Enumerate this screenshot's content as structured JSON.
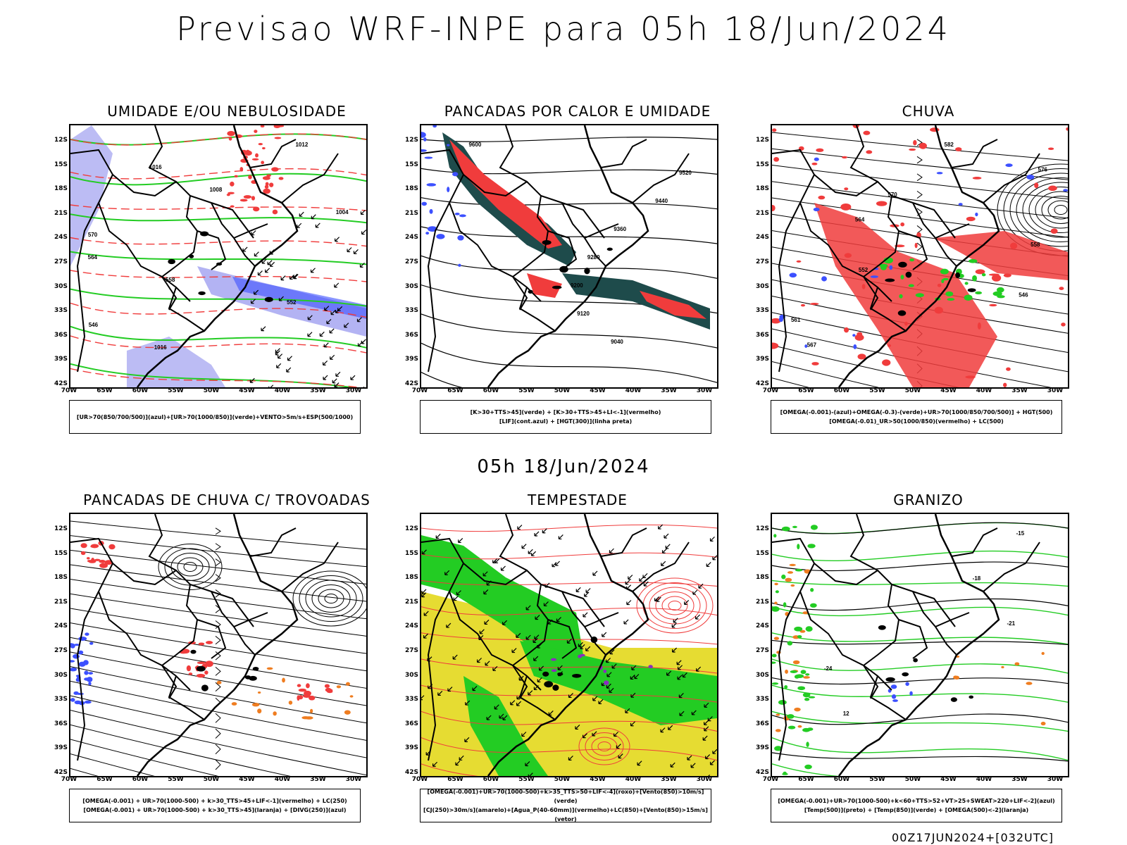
{
  "header": {
    "title": "Previsao WRF-INPE  para 05h 18/Jun/2024",
    "subtitle": "05h 18/Jun/2024",
    "footer": "00Z17JUN2024+[032UTC]"
  },
  "axes": {
    "lat_labels": [
      "12S",
      "15S",
      "18S",
      "21S",
      "24S",
      "27S",
      "30S",
      "33S",
      "36S",
      "39S",
      "42S"
    ],
    "lon_labels": [
      "70W",
      "65W",
      "60W",
      "55W",
      "50W",
      "45W",
      "40W",
      "35W",
      "30W"
    ]
  },
  "panels": [
    {
      "title": "UMIDADE E/OU NEBULOSIDADE",
      "legend": [
        "[UR>70(850/700/500)](azul)+[UR>70(1000/850)](verde)+VENTO>5m/s+ESP(500/1000)"
      ]
    },
    {
      "title": "PANCADAS POR CALOR E UMIDADE",
      "legend": [
        "[K>30+TTS>45](verde) + [K>30+TTS>45+LI<-1](vermelho)",
        "[LIF](cont.azul) + [HGT(300)](linha preta)"
      ]
    },
    {
      "title": "CHUVA",
      "legend": [
        "[OMEGA(-0.001)-(azul)+OMEGA(-0.3)-(verde)+UR>70(1000/850/700/500)] + HGT(500)",
        "[OMEGA(-0.01)_UR>50(1000/850)(vermelho) + LC(500)"
      ]
    },
    {
      "title": "PANCADAS DE CHUVA C/ TROVOADAS",
      "legend": [
        "[OMEGA(-0.001) + UR>70(1000-500) + k>30_TTS>45+LIF<-1](vermelho) + LC(250)",
        "[OMEGA(-0.001) + UR>70(1000-500) + k>30_TTS>45](laranja) + [DIVG(250)](azul)"
      ]
    },
    {
      "title": "TEMPESTADE",
      "legend": [
        "[OMEGA(-0.001)+UR>70(1000-500)+k>35_TTS>50+LIF<-4](roxo)+[Vento(850)>10m/s](verde)",
        "[CJ(250)>30m/s](amarelo)+[Agua_P(40-60mm)](vermelho)+LC(850)+[Vento(850)>15m/s](vetor)"
      ]
    },
    {
      "title": "GRANIZO",
      "legend": [
        "[OMEGA(-0.001)+UR>70(1000-500)+k<60+TTS>52+VT>25+SWEAT>220+LIF<-2](azul)",
        "[Temp(500)](preto) + [Temp(850)](verde) + [OMEGA(500)<-2](laranja)"
      ]
    }
  ],
  "contour_labels": {
    "p1": [
      "1012",
      "1016",
      "1008",
      "1004",
      "570",
      "564",
      "558",
      "552",
      "546",
      "1016"
    ],
    "p2": [
      "9600",
      "9520",
      "9440",
      "9360",
      "9280",
      "9200",
      "9120",
      "9040"
    ],
    "p3": [
      "582",
      "576",
      "570",
      "564",
      "558",
      "552",
      "546",
      "561",
      "567"
    ],
    "p6": [
      "-15",
      "-18",
      "-21",
      "-24",
      "12"
    ]
  },
  "colors": {
    "red": "#f03c3c",
    "green": "#23cc23",
    "blue": "#3c50ff",
    "lavender": "#a0a0f0",
    "dark_teal": "#1e4b4b",
    "yellow": "#e6dc32",
    "orange": "#ef7d20",
    "purple": "#8c2dbe"
  }
}
